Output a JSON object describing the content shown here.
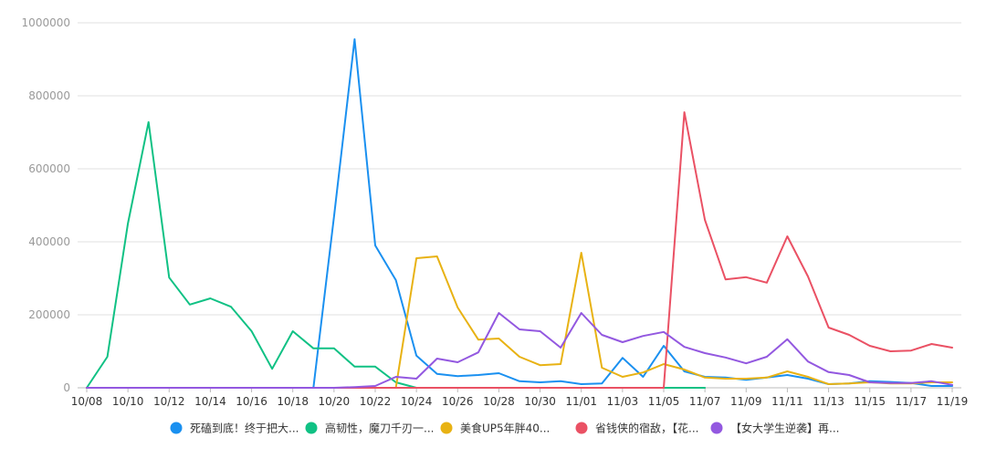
{
  "chart_data": {
    "type": "line",
    "title": "",
    "xlabel": "",
    "ylabel": "",
    "ylim": [
      0,
      1000000
    ],
    "yticks": [
      0,
      200000,
      400000,
      600000,
      800000,
      1000000
    ],
    "ytick_labels": [
      "0",
      "200000",
      "400000",
      "600000",
      "800000",
      "1000000"
    ],
    "grid": true,
    "legend_position": "bottom",
    "x": [
      "10/08",
      "10/09",
      "10/10",
      "10/11",
      "10/12",
      "10/13",
      "10/14",
      "10/15",
      "10/16",
      "10/17",
      "10/18",
      "10/19",
      "10/20",
      "10/21",
      "10/22",
      "10/23",
      "10/24",
      "10/25",
      "10/26",
      "10/27",
      "10/28",
      "10/29",
      "10/30",
      "10/31",
      "11/01",
      "11/02",
      "11/03",
      "11/04",
      "11/05",
      "11/06",
      "11/07",
      "11/08",
      "11/09",
      "11/10",
      "11/11",
      "11/12",
      "11/13",
      "11/14",
      "11/15",
      "11/16",
      "11/17",
      "11/18",
      "11/19"
    ],
    "x_tick_labels": [
      "10/08",
      "10/10",
      "10/12",
      "10/14",
      "10/16",
      "10/18",
      "10/20",
      "10/22",
      "10/24",
      "10/26",
      "10/28",
      "10/30",
      "11/01",
      "11/03",
      "11/05",
      "11/07",
      "11/09",
      "11/11",
      "11/13",
      "11/15",
      "11/17",
      "11/19"
    ],
    "series": [
      {
        "name": "死磕到底！终于把大...",
        "color": "#1a90f0",
        "values": [
          0,
          0,
          0,
          0,
          0,
          0,
          0,
          0,
          0,
          0,
          0,
          0,
          470000,
          955000,
          390000,
          295000,
          88000,
          38000,
          32000,
          35000,
          40000,
          18000,
          15000,
          18000,
          10000,
          12000,
          82000,
          30000,
          115000,
          45000,
          30000,
          28000,
          22000,
          28000,
          35000,
          25000,
          10000,
          12000,
          18000,
          16000,
          13000,
          5000,
          5000
        ]
      },
      {
        "name": "高韧性，魔刀千刃一...",
        "color": "#10c184",
        "values": [
          0,
          85000,
          450000,
          728000,
          302000,
          228000,
          245000,
          222000,
          155000,
          52000,
          155000,
          108000,
          108000,
          58000,
          58000,
          15000,
          0,
          0,
          0,
          0,
          0,
          0,
          0,
          0,
          0,
          0,
          0,
          0,
          0,
          0,
          0,
          null,
          null,
          null,
          null,
          null,
          null,
          null,
          null,
          null,
          null,
          null,
          null
        ]
      },
      {
        "name": "美食UP5年胖40...",
        "color": "#e8b213",
        "values": [
          0,
          0,
          0,
          0,
          0,
          0,
          0,
          0,
          0,
          0,
          0,
          0,
          0,
          0,
          0,
          0,
          355000,
          360000,
          220000,
          132000,
          135000,
          85000,
          62000,
          65000,
          370000,
          55000,
          30000,
          42000,
          65000,
          50000,
          28000,
          25000,
          25000,
          28000,
          45000,
          30000,
          10000,
          12000,
          15000,
          12000,
          12000,
          15000,
          15000
        ]
      },
      {
        "name": "省钱侠的宿敌，【花...",
        "color": "#ea5164",
        "values": [
          0,
          0,
          0,
          0,
          0,
          0,
          0,
          0,
          0,
          0,
          0,
          0,
          0,
          0,
          0,
          0,
          0,
          0,
          0,
          0,
          0,
          0,
          0,
          0,
          0,
          0,
          0,
          0,
          0,
          755000,
          460000,
          297000,
          303000,
          288000,
          415000,
          305000,
          165000,
          145000,
          115000,
          100000,
          102000,
          120000,
          110000
        ]
      },
      {
        "name": "【女大学生逆袭】再...",
        "color": "#9358e0",
        "values": [
          0,
          0,
          0,
          0,
          0,
          0,
          0,
          0,
          0,
          0,
          0,
          0,
          0,
          2000,
          5000,
          30000,
          25000,
          80000,
          70000,
          97000,
          205000,
          160000,
          155000,
          110000,
          205000,
          145000,
          125000,
          142000,
          153000,
          112000,
          95000,
          83000,
          67000,
          85000,
          133000,
          72000,
          43000,
          35000,
          15000,
          13000,
          13000,
          18000,
          8000
        ]
      }
    ]
  }
}
